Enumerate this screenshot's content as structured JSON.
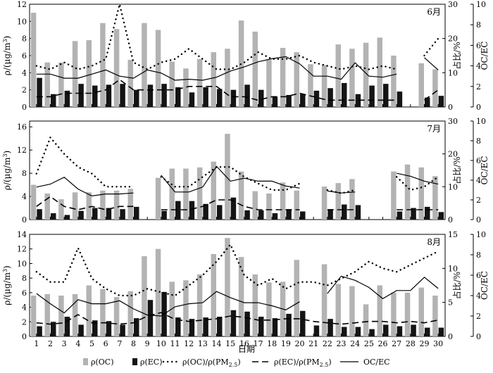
{
  "x_axis_title": "日期",
  "x_ticks": [
    "1",
    "2",
    "3",
    "4",
    "5",
    "6",
    "7",
    "8",
    "9",
    "10",
    "11",
    "12",
    "13",
    "14",
    "15",
    "16",
    "17",
    "18",
    "19",
    "20",
    "21",
    "22",
    "23",
    "24",
    "25",
    "26",
    "27",
    "28",
    "29",
    "30"
  ],
  "left_axis_title_prefix": "ρ/(μg/m",
  "left_axis_title_sup": "3",
  "left_axis_title_suffix": ")",
  "right_axis_title_inner": "占比/%",
  "right_axis_title_outer": "OC/EC",
  "legend": [
    {
      "key": "oc",
      "prefix": "ρ(OC)",
      "sub": "",
      "suffix": ""
    },
    {
      "key": "ec",
      "prefix": "ρ(EC)",
      "sub": "",
      "suffix": ""
    },
    {
      "key": "oc_pm",
      "prefix": "ρ(OC)/ρ(PM",
      "sub": "2.5",
      "suffix": ")"
    },
    {
      "key": "ec_pm",
      "prefix": "ρ(EC)/ρ(PM",
      "sub": "2.5",
      "suffix": ")"
    },
    {
      "key": "ocec",
      "prefix": "OC/EC",
      "sub": "",
      "suffix": ""
    }
  ],
  "colors": {
    "oc": "#b3b3b3",
    "ec": "#141414",
    "line": "#000000"
  },
  "chart_data": [
    {
      "type": "bar",
      "label": "6月",
      "left_ylim": [
        0,
        12
      ],
      "left_ticks": [
        "0",
        "2",
        "4",
        "6",
        "8",
        "10",
        "12"
      ],
      "pct_ylim": [
        0,
        30
      ],
      "pct_ticks": [
        "0",
        "10",
        "20",
        "30"
      ],
      "ratio_ylim": [
        0,
        10
      ],
      "ratio_ticks": [
        "0",
        "2",
        "4",
        "6",
        "8",
        "10"
      ],
      "oc": [
        11.0,
        5.2,
        5.2,
        7.7,
        7.8,
        9.8,
        9.1,
        5.5,
        9.8,
        9.0,
        5.3,
        4.5,
        5.6,
        6.4,
        6.8,
        10.1,
        8.8,
        5.5,
        6.9,
        6.4,
        5.0,
        4.9,
        7.3,
        6.8,
        7.5,
        8.1,
        6.0,
        null,
        5.1,
        4.4
      ],
      "ec": [
        3.4,
        1.5,
        1.9,
        2.7,
        2.5,
        2.6,
        2.7,
        2.0,
        2.6,
        2.7,
        2.3,
        1.7,
        2.3,
        2.1,
        2.0,
        2.6,
        2.0,
        1.2,
        1.4,
        1.5,
        1.9,
        2.2,
        2.8,
        1.5,
        2.5,
        2.7,
        1.8,
        null,
        1.1,
        1.3
      ],
      "oc_pm": [
        12,
        11,
        13,
        11,
        12,
        14,
        30,
        13,
        11,
        13,
        14,
        17,
        14,
        11,
        11,
        13,
        16,
        14,
        14,
        15,
        13,
        12,
        11,
        12,
        11,
        12,
        11,
        null,
        15,
        20
      ],
      "ec_pm": [
        3,
        3,
        4,
        4,
        4,
        5,
        8,
        5,
        5,
        5,
        5,
        6,
        6,
        6,
        3,
        3,
        2,
        3,
        3,
        4,
        3,
        2,
        2,
        2,
        2,
        2,
        2,
        null,
        2,
        5
      ],
      "ocec": [
        3.2,
        3.2,
        2.8,
        2.8,
        3.2,
        3.6,
        3.0,
        2.8,
        3.6,
        3.3,
        2.6,
        2.7,
        2.6,
        2.9,
        3.5,
        3.9,
        4.4,
        4.7,
        4.9,
        4.2,
        3.0,
        3.0,
        2.7,
        4.3,
        3.0,
        2.9,
        3.2,
        null,
        4.8,
        3.6
      ]
    },
    {
      "type": "bar",
      "label": "7月",
      "left_ylim": [
        0,
        17
      ],
      "left_ticks": [
        "0",
        "4",
        "8",
        "12",
        "16"
      ],
      "pct_ylim": [
        0,
        30
      ],
      "pct_ticks": [
        "0",
        "10",
        "20",
        "30"
      ],
      "ratio_ylim": [
        0,
        10
      ],
      "ratio_ticks": [
        "0",
        "2",
        "4",
        "6",
        "8",
        "10"
      ],
      "oc": [
        6.0,
        4.5,
        3.5,
        4.7,
        4.7,
        5.0,
        5.0,
        5.3,
        null,
        7.2,
        8.8,
        8.8,
        9.0,
        10.0,
        14.8,
        8.3,
        4.9,
        4.5,
        6.4,
        5.0,
        null,
        5.7,
        6.3,
        7.0,
        null,
        null,
        8.3,
        9.5,
        9.0,
        7.5
      ],
      "ec": [
        1.8,
        1.1,
        0.8,
        1.5,
        2.0,
        2.0,
        1.8,
        2.2,
        null,
        1.5,
        3.2,
        3.2,
        2.7,
        2.5,
        3.8,
        1.6,
        1.6,
        1.1,
        1.8,
        1.4,
        null,
        1.8,
        2.6,
        2.5,
        null,
        null,
        1.4,
        2.0,
        2.2,
        1.3
      ],
      "oc_pm": [
        14,
        25,
        20,
        16,
        14,
        10,
        10,
        10,
        null,
        13,
        10,
        10,
        13,
        16,
        16,
        13,
        11,
        9,
        9,
        11,
        null,
        9,
        8,
        9,
        null,
        null,
        13,
        9,
        10,
        13
      ],
      "ec_pm": [
        4,
        7,
        4,
        3,
        4,
        3,
        4,
        4,
        null,
        3,
        3,
        3,
        4,
        6,
        6,
        4,
        3,
        3,
        3,
        3,
        null,
        3,
        3,
        3,
        null,
        null,
        3,
        3,
        3,
        3
      ],
      "ocec": [
        3.3,
        3.6,
        4.3,
        3.1,
        2.4,
        2.6,
        2.6,
        2.7,
        null,
        4.5,
        2.8,
        2.8,
        3.3,
        5.4,
        3.9,
        4.2,
        3.9,
        3.9,
        3.4,
        3.2,
        null,
        2.9,
        2.7,
        2.8,
        null,
        null,
        4.7,
        4.4,
        3.9,
        3.6
      ]
    },
    {
      "type": "bar",
      "label": "8月",
      "left_ylim": [
        0,
        14
      ],
      "left_ticks": [
        "0",
        "2",
        "4",
        "6",
        "8",
        "10",
        "12",
        "14"
      ],
      "pct_ylim": [
        0,
        15
      ],
      "pct_ticks": [
        "0",
        "5",
        "10",
        "15"
      ],
      "ratio_ylim": [
        0,
        10
      ],
      "ratio_ticks": [
        "0",
        "2",
        "4",
        "6",
        "8",
        "10"
      ],
      "oc": [
        5.6,
        5.8,
        5.6,
        5.8,
        7.0,
        6.5,
        5.4,
        6.2,
        11.0,
        12.0,
        7.5,
        7.7,
        8.5,
        11.3,
        13.5,
        10.9,
        8.5,
        7.4,
        7.5,
        10.5,
        null,
        9.9,
        7.2,
        6.9,
        4.4,
        7.0,
        6.0,
        6.0,
        6.7,
        5.6
      ],
      "ec": [
        1.4,
        2.0,
        2.7,
        1.6,
        2.2,
        2.1,
        1.6,
        2.5,
        5.0,
        6.1,
        2.6,
        2.4,
        2.6,
        2.7,
        3.6,
        3.4,
        2.7,
        2.5,
        3.1,
        3.5,
        1.5,
        2.4,
        1.3,
        1.3,
        1.0,
        1.6,
        1.4,
        1.6,
        1.2,
        1.2
      ],
      "oc_pm": [
        9.5,
        8.0,
        8.0,
        13.0,
        8.5,
        7.0,
        6.0,
        6.0,
        7.0,
        6.5,
        6.0,
        7.5,
        9.0,
        11.0,
        13.5,
        9.0,
        7.5,
        8.5,
        7.0,
        8.0,
        8.0,
        7.5,
        8.5,
        9.5,
        11.0,
        10.0,
        9.5,
        10.5,
        11.5,
        12.5
      ],
      "ec_pm": [
        2.0,
        1.8,
        2.0,
        3.2,
        2.0,
        2.0,
        1.8,
        2.0,
        3.0,
        3.5,
        2.5,
        2.2,
        2.4,
        2.6,
        3.0,
        2.8,
        2.4,
        2.4,
        2.6,
        2.6,
        2.2,
        2.0,
        1.8,
        2.0,
        2.2,
        2.2,
        2.0,
        2.2,
        2.0,
        2.4
      ],
      "ocec": [
        4.2,
        3.2,
        2.3,
        3.6,
        3.2,
        3.2,
        3.5,
        2.7,
        2.1,
        2.0,
        2.9,
        3.2,
        3.3,
        4.4,
        3.8,
        3.3,
        3.3,
        3.0,
        2.6,
        3.4,
        null,
        4.2,
        5.9,
        5.5,
        4.8,
        3.7,
        4.5,
        4.5,
        5.8,
        4.7
      ]
    }
  ]
}
